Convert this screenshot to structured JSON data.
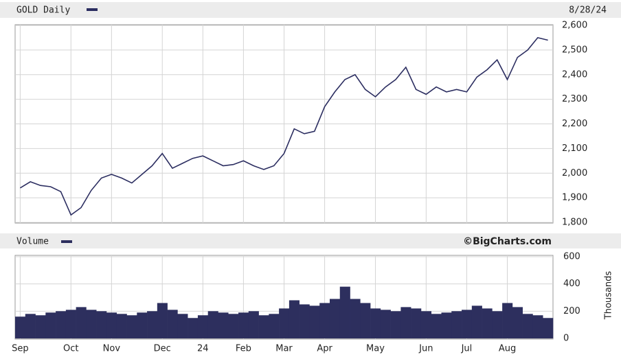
{
  "chart_data": [
    {
      "type": "line",
      "title": "GOLD Daily",
      "date": "8/28/24",
      "color": "#2b2d60",
      "categories": [
        "Sep",
        null,
        null,
        null,
        null,
        "Oct",
        null,
        null,
        null,
        "Nov",
        null,
        null,
        null,
        null,
        "Dec",
        null,
        null,
        null,
        "24",
        null,
        null,
        null,
        "Feb",
        null,
        null,
        null,
        "Mar",
        null,
        null,
        null,
        "Apr",
        null,
        null,
        null,
        null,
        "May",
        null,
        null,
        null,
        null,
        "Jun",
        null,
        null,
        null,
        "Jul",
        null,
        null,
        null,
        "Aug",
        null,
        null,
        null,
        null
      ],
      "values": [
        1940,
        1965,
        1950,
        1945,
        1925,
        1830,
        1860,
        1930,
        1980,
        1995,
        1980,
        1960,
        1995,
        2030,
        2080,
        2020,
        2040,
        2060,
        2070,
        2050,
        2030,
        2035,
        2050,
        2030,
        2015,
        2030,
        2080,
        2180,
        2160,
        2170,
        2270,
        2330,
        2380,
        2400,
        2340,
        2310,
        2350,
        2380,
        2430,
        2340,
        2320,
        2350,
        2330,
        2340,
        2330,
        2390,
        2420,
        2460,
        2380,
        2470,
        2500,
        2550,
        2540
      ],
      "ylim": [
        1800,
        2600
      ],
      "yticks": [
        {
          "value": 1800,
          "label": "1,800"
        },
        {
          "value": 1900,
          "label": "1,900"
        },
        {
          "value": 2000,
          "label": "2,000"
        },
        {
          "value": 2100,
          "label": "2,100"
        },
        {
          "value": 2200,
          "label": "2,200"
        },
        {
          "value": 2300,
          "label": "2,300"
        },
        {
          "value": 2400,
          "label": "2,400"
        },
        {
          "value": 2500,
          "label": "2,500"
        },
        {
          "value": 2600,
          "label": "2,600"
        }
      ],
      "grid": true
    },
    {
      "type": "bar",
      "title": "Volume",
      "source": "©BigCharts.com",
      "y_label": "Thousands",
      "color": "#2d2f5e",
      "values": [
        160,
        180,
        170,
        190,
        200,
        210,
        230,
        210,
        200,
        190,
        180,
        170,
        190,
        200,
        260,
        210,
        180,
        150,
        170,
        200,
        190,
        180,
        190,
        200,
        170,
        180,
        220,
        280,
        250,
        240,
        260,
        290,
        380,
        290,
        260,
        220,
        210,
        200,
        230,
        220,
        200,
        180,
        190,
        200,
        210,
        240,
        220,
        200,
        260,
        230,
        180,
        170,
        150
      ],
      "ylim": [
        0,
        600
      ],
      "yticks": [
        0,
        200,
        400,
        600
      ],
      "grid": true
    }
  ]
}
